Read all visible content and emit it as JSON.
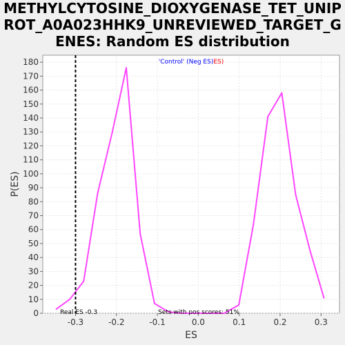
{
  "chart_data": {
    "type": "line",
    "title": "METHYLCYTOSINE_DIOXYGENASE_TET_UNIPROT_A0A023HHK9_UNREVIEWED_TARGET_GENES: Random ES distribution",
    "xlabel": "ES",
    "ylabel": "P(ES)",
    "xlim": [
      -0.38,
      0.345
    ],
    "ylim": [
      0,
      185
    ],
    "x_ticks": [
      -0.3,
      -0.2,
      -0.1,
      0.0,
      0.1,
      0.2,
      0.3
    ],
    "x_tick_labels": [
      "-0.3",
      "-0.2",
      "-0.1",
      "0.0",
      "0.1",
      "0.2",
      "0.3"
    ],
    "y_ticks": [
      0,
      10,
      20,
      30,
      40,
      50,
      60,
      70,
      80,
      90,
      100,
      110,
      120,
      130,
      140,
      150,
      160,
      170,
      180
    ],
    "grid": true,
    "legend": {
      "placement": "top-center",
      "prefix": "'Control' (Neg ES)",
      "suffix": "ES)",
      "prefix_color": "#0000ff",
      "suffix_color": "#ff0000"
    },
    "series": [
      {
        "color": "#ff44ff",
        "x": [
          -0.347,
          -0.314,
          -0.28,
          -0.246,
          -0.21,
          -0.176,
          -0.142,
          -0.107,
          -0.073,
          -0.039,
          -0.005,
          0.03,
          0.064,
          0.099,
          0.135,
          0.17,
          0.204,
          0.238,
          0.273,
          0.307
        ],
        "y": [
          3,
          10,
          23,
          86,
          130,
          176,
          57,
          7,
          1,
          0,
          0,
          0,
          0,
          6,
          64,
          141,
          158,
          85,
          45,
          11
        ]
      }
    ],
    "real_es": {
      "x": -0.3,
      "label": "Real ES -0.3"
    },
    "annotation": "Sets with pos scores: 51%"
  }
}
